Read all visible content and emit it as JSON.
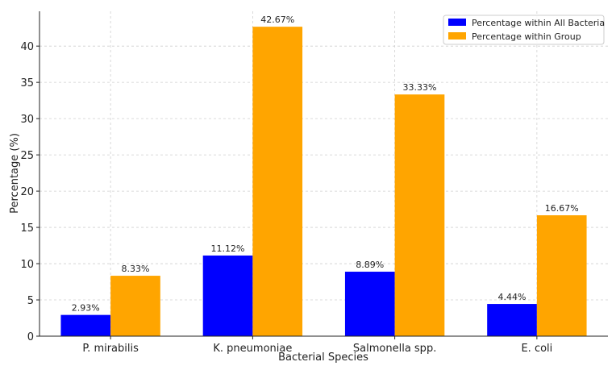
{
  "chart_data": {
    "type": "bar",
    "title": "",
    "xlabel": "Bacterial Species",
    "ylabel": "Percentage (%)",
    "categories": [
      "P. mirabilis",
      "K. pneumoniae",
      "Salmonella spp.",
      "E. coli"
    ],
    "series": [
      {
        "name": "Percentage within All Bacteria",
        "color": "#0000ff",
        "values": [
          2.93,
          11.12,
          8.89,
          4.44
        ],
        "labels": [
          "2.93%",
          "11.12%",
          "8.89%",
          "4.44%"
        ]
      },
      {
        "name": "Percentage within Group",
        "color": "#ffa500",
        "values": [
          8.33,
          42.67,
          33.33,
          16.67
        ],
        "labels": [
          "8.33%",
          "42.67%",
          "33.33%",
          "16.67%"
        ]
      }
    ],
    "ylim": [
      0,
      44.8
    ],
    "yticks": [
      0,
      5,
      10,
      15,
      20,
      25,
      30,
      35,
      40
    ],
    "grid": true,
    "legend_position": "top-right"
  }
}
